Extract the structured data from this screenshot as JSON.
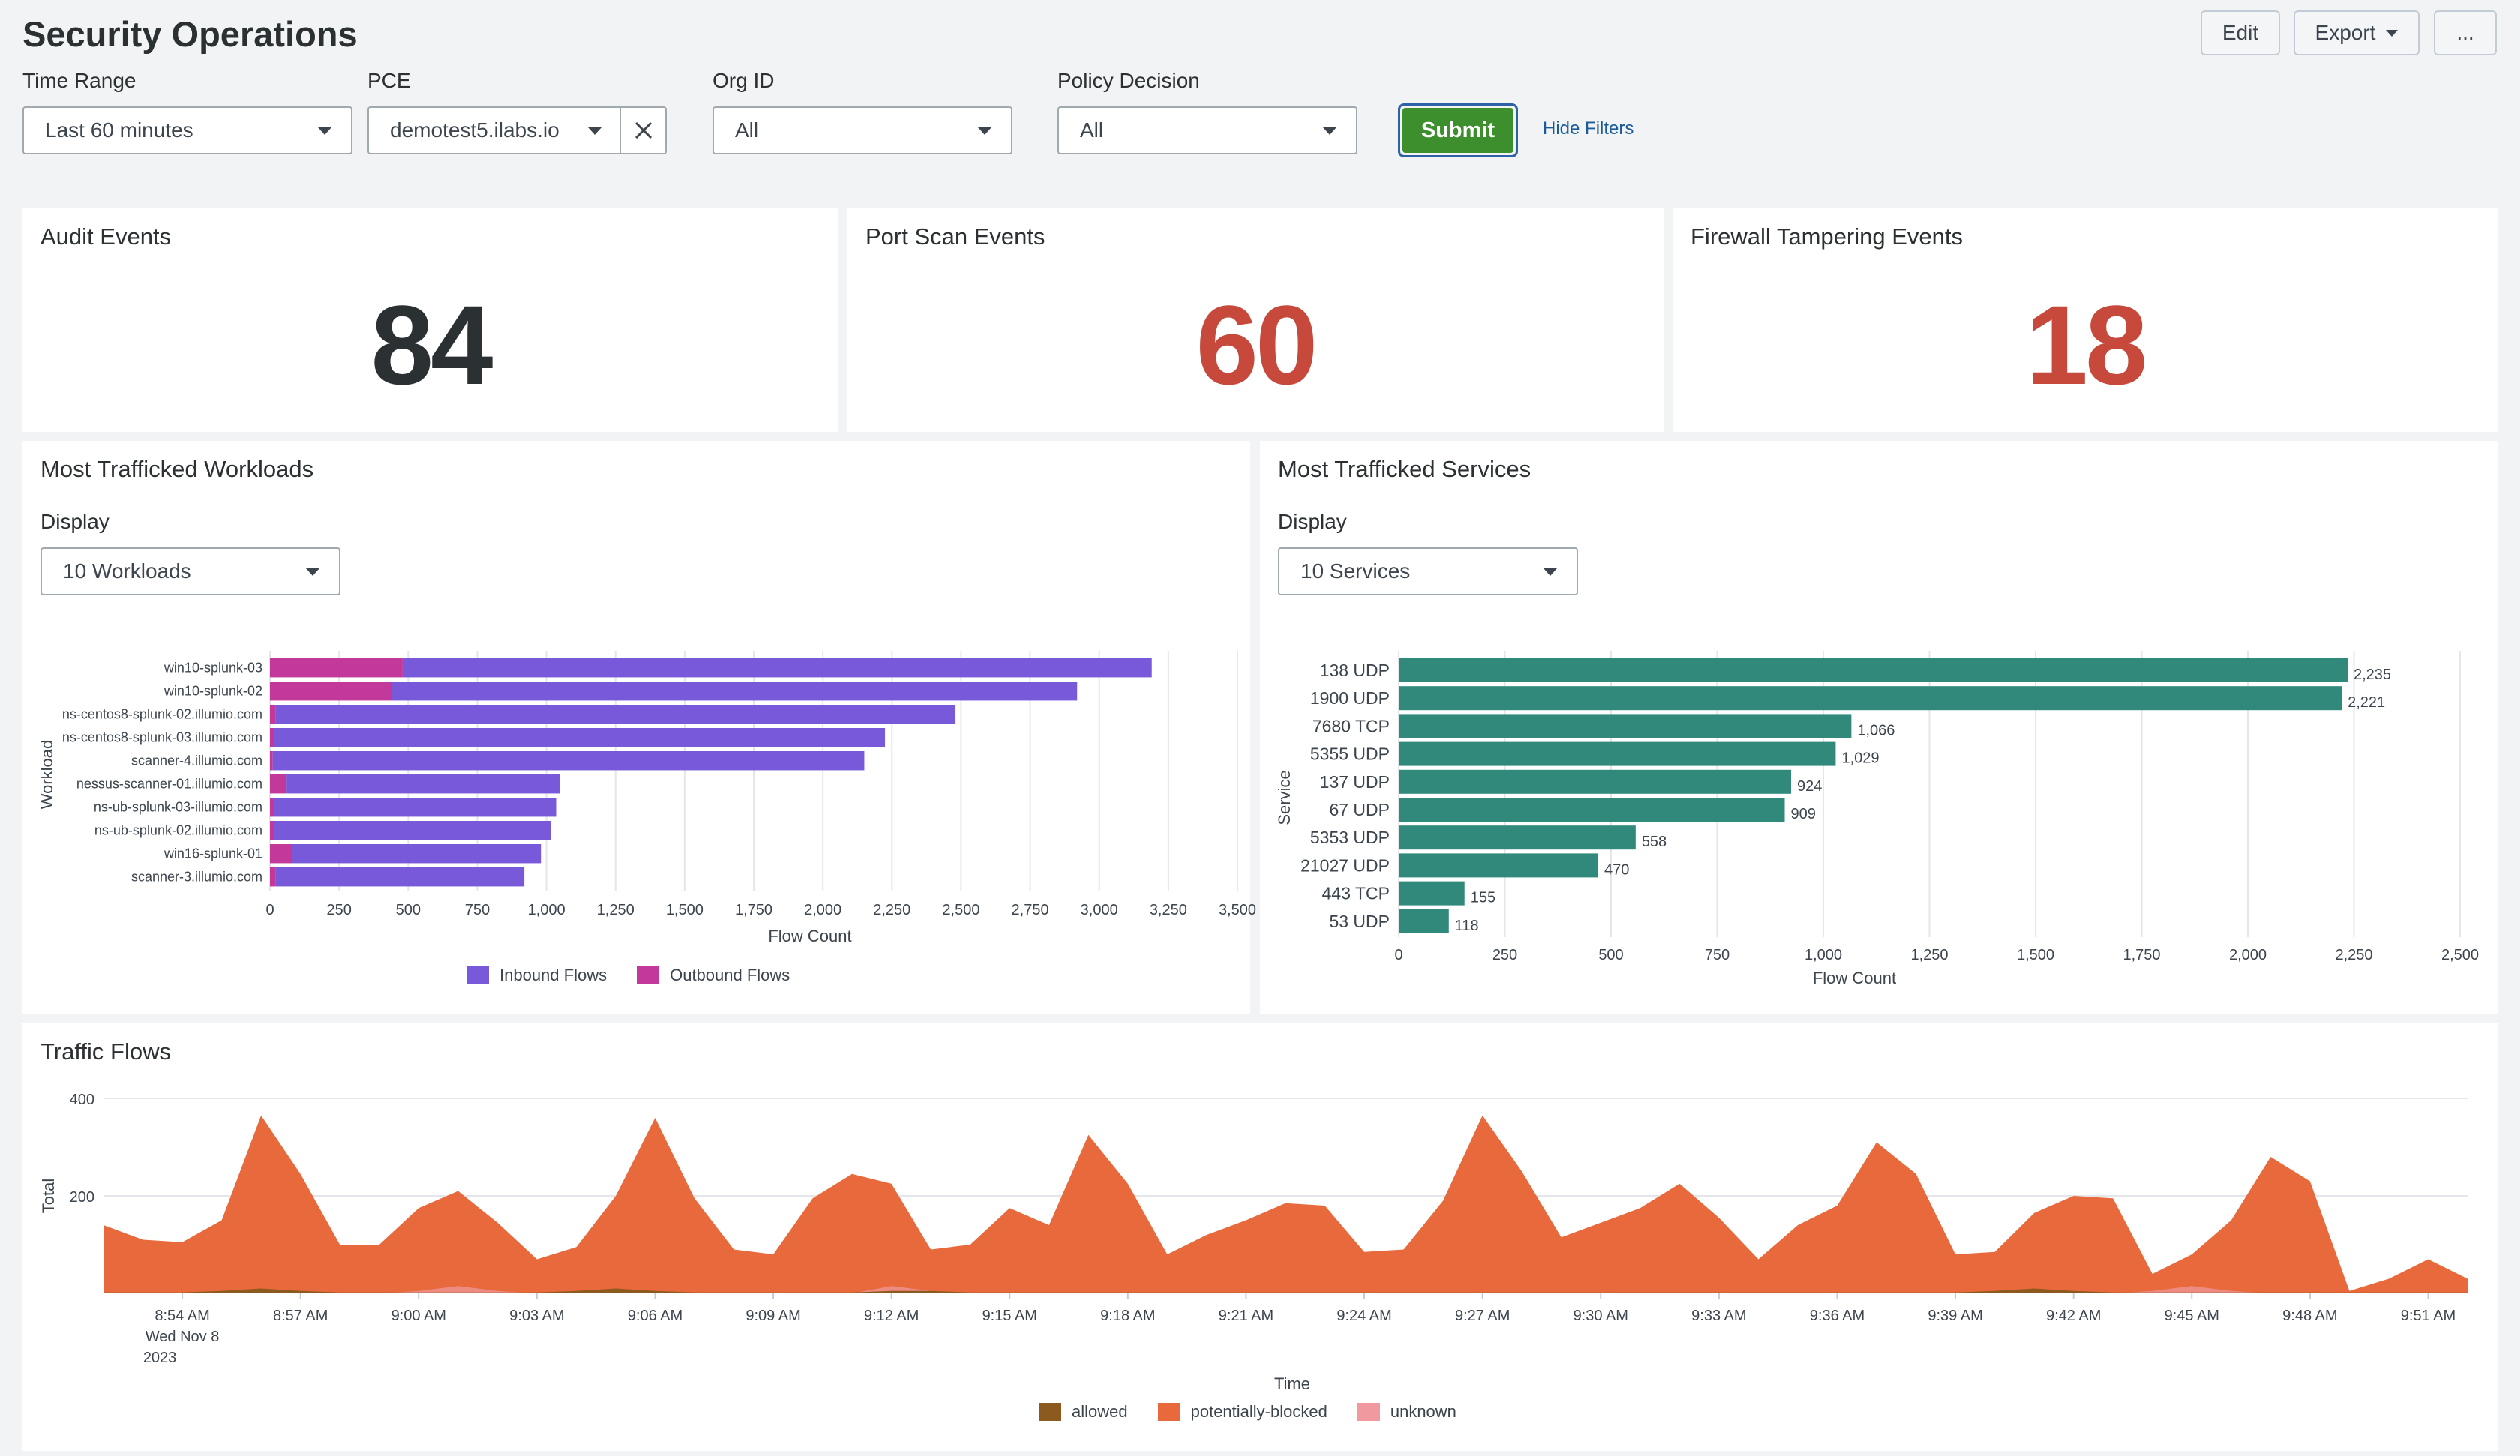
{
  "header": {
    "title": "Security Operations",
    "edit_label": "Edit",
    "export_label": "Export",
    "more_label": "..."
  },
  "filters": {
    "time_range": {
      "label": "Time Range",
      "value": "Last 60 minutes"
    },
    "pce": {
      "label": "PCE",
      "value": "demotest5.ilabs.io"
    },
    "org_id": {
      "label": "Org ID",
      "value": "All"
    },
    "policy_decision": {
      "label": "Policy Decision",
      "value": "All"
    },
    "submit_label": "Submit",
    "hide_filters_label": "Hide Filters"
  },
  "singles": {
    "audit": {
      "title": "Audit Events",
      "value": "84",
      "color": "#2b3033"
    },
    "port_scan": {
      "title": "Port Scan Events",
      "value": "60",
      "color": "#c6493b"
    },
    "firewall": {
      "title": "Firewall Tampering Events",
      "value": "18",
      "color": "#c6493b"
    }
  },
  "workloads_panel": {
    "title": "Most Trafficked Workloads",
    "display_label": "Display",
    "display_value": "10 Workloads"
  },
  "services_panel": {
    "title": "Most Trafficked Services",
    "display_label": "Display",
    "display_value": "10 Services"
  },
  "traffic_panel": {
    "title": "Traffic Flows"
  },
  "colors": {
    "inbound": "#7759d9",
    "outbound": "#c2399b",
    "services": "#30897a",
    "allowed": "#8c5a1e",
    "potentially_blocked": "#e8693c",
    "unknown": "#f09aa0"
  },
  "chart_data": [
    {
      "type": "bar",
      "orientation": "horizontal",
      "stacked": true,
      "title": "Most Trafficked Workloads",
      "categories": [
        "win10-splunk-03",
        "win10-splunk-02",
        "ns-centos8-splunk-02.illumio.com",
        "ns-centos8-splunk-03.illumio.com",
        "scanner-4.illumio.com",
        "nessus-scanner-01.illumio.com",
        "ns-ub-splunk-03-illumio.com",
        "ns-ub-splunk-02.illumio.com",
        "win16-splunk-01",
        "scanner-3.illumio.com"
      ],
      "series": [
        {
          "name": "Inbound Flows",
          "values": [
            2710,
            2480,
            2460,
            2210,
            2140,
            990,
            1020,
            1000,
            900,
            900
          ]
        },
        {
          "name": "Outbound Flows",
          "values": [
            480,
            440,
            20,
            15,
            10,
            60,
            15,
            15,
            80,
            20
          ]
        }
      ],
      "xlabel": "Flow Count",
      "ylabel": "Workload",
      "xticks": [
        "0",
        "250",
        "500",
        "750",
        "1,000",
        "1,250",
        "1,500",
        "1,750",
        "2,000",
        "2,250",
        "2,500",
        "2,750",
        "3,000",
        "3,250",
        "3,500"
      ],
      "xlim": [
        0,
        3500
      ],
      "legend": "bottom"
    },
    {
      "type": "bar",
      "orientation": "horizontal",
      "title": "Most Trafficked Services",
      "categories": [
        "138 UDP",
        "1900 UDP",
        "7680 TCP",
        "5355 UDP",
        "137 UDP",
        "67 UDP",
        "5353 UDP",
        "21027 UDP",
        "443 TCP",
        "53 UDP"
      ],
      "values": [
        2235,
        2221,
        1066,
        1029,
        924,
        909,
        558,
        470,
        155,
        118
      ],
      "labels": [
        "2,235",
        "2,221",
        "1,066",
        "1,029",
        "924",
        "909",
        "558",
        "470",
        "155",
        "118"
      ],
      "xlabel": "Flow Count",
      "ylabel": "Service",
      "xticks": [
        "0",
        "250",
        "500",
        "750",
        "1,000",
        "1,250",
        "1,500",
        "1,750",
        "2,000",
        "2,250",
        "2,500"
      ],
      "xlim": [
        0,
        2500
      ]
    },
    {
      "type": "area",
      "title": "Traffic Flows",
      "x_interval_min": 1,
      "x_start": "8:52 AM",
      "x_end": "9:52 AM",
      "xticks": [
        "8:54 AM",
        "8:57 AM",
        "9:00 AM",
        "9:03 AM",
        "9:06 AM",
        "9:09 AM",
        "9:12 AM",
        "9:15 AM",
        "9:18 AM",
        "9:21 AM",
        "9:24 AM",
        "9:27 AM",
        "9:30 AM",
        "9:33 AM",
        "9:36 AM",
        "9:39 AM",
        "9:42 AM",
        "9:45 AM",
        "9:48 AM",
        "9:51 AM"
      ],
      "xtick_date": "Wed Nov 8",
      "xtick_year": "2023",
      "yticks": [
        "200",
        "400"
      ],
      "ylim": [
        0,
        400
      ],
      "xlabel": "Time",
      "ylabel": "Total",
      "series": [
        {
          "name": "allowed",
          "values": [
            2,
            2,
            2,
            5,
            10,
            5,
            2,
            2,
            2,
            2,
            2,
            2,
            5,
            10,
            5,
            2,
            2,
            2,
            2,
            2,
            5,
            5,
            2,
            2,
            2,
            2,
            2,
            2,
            2,
            2,
            2,
            2,
            2,
            2,
            2,
            2,
            2,
            2,
            2,
            2,
            2,
            2,
            2,
            2,
            2,
            2,
            2,
            2,
            5,
            10,
            5,
            2,
            2,
            2,
            2,
            2,
            2,
            2,
            2,
            2,
            2
          ]
        },
        {
          "name": "potentially-blocked",
          "values": [
            140,
            110,
            105,
            150,
            365,
            245,
            100,
            100,
            175,
            210,
            145,
            70,
            95,
            200,
            360,
            195,
            90,
            80,
            195,
            245,
            225,
            90,
            100,
            175,
            140,
            325,
            225,
            80,
            120,
            150,
            185,
            180,
            85,
            90,
            190,
            365,
            250,
            115,
            145,
            175,
            225,
            155,
            70,
            140,
            180,
            310,
            245,
            80,
            85,
            165,
            200,
            195,
            40,
            80,
            150,
            280,
            230,
            5,
            30,
            70,
            30
          ]
        },
        {
          "name": "unknown",
          "values": [
            0,
            0,
            0,
            0,
            0,
            0,
            0,
            0,
            5,
            15,
            5,
            0,
            0,
            0,
            0,
            0,
            0,
            0,
            0,
            0,
            15,
            5,
            0,
            0,
            0,
            0,
            0,
            0,
            0,
            0,
            0,
            0,
            0,
            0,
            0,
            0,
            0,
            0,
            0,
            0,
            0,
            0,
            0,
            0,
            0,
            0,
            0,
            0,
            0,
            0,
            0,
            0,
            5,
            15,
            5,
            0,
            0,
            0,
            0,
            0,
            0
          ]
        }
      ],
      "legend": "bottom"
    }
  ]
}
